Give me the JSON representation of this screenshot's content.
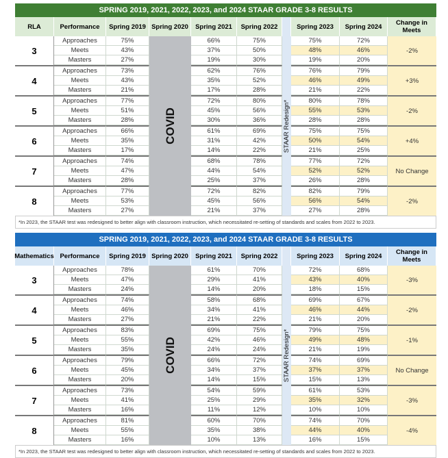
{
  "tables": [
    {
      "title": "SPRING 2019, 2021, 2022, 2023, and 2024 STAAR GRADE 3-8 RESULTS",
      "title_color": "#3f7f34",
      "header_bg": "#dcebd6",
      "subject": "RLA",
      "headers": [
        "Performance",
        "Spring 2019",
        "Spring 2020",
        "Spring 2021",
        "Spring 2022",
        "Spring 2023",
        "Spring 2024",
        "Change in Meets"
      ],
      "covid_label": "COVID",
      "redesign_label": "STAAR Redesign*",
      "levels": [
        "Approaches",
        "Meets",
        "Masters"
      ],
      "grades": [
        {
          "grade": "3",
          "rows": [
            [
              "75%",
              "66%",
              "75%",
              "75%",
              "72%"
            ],
            [
              "43%",
              "37%",
              "50%",
              "48%",
              "46%"
            ],
            [
              "27%",
              "19%",
              "30%",
              "19%",
              "20%"
            ]
          ],
          "change": "-2%"
        },
        {
          "grade": "4",
          "rows": [
            [
              "73%",
              "62%",
              "76%",
              "76%",
              "79%"
            ],
            [
              "43%",
              "35%",
              "52%",
              "46%",
              "49%"
            ],
            [
              "21%",
              "17%",
              "28%",
              "21%",
              "22%"
            ]
          ],
          "change": "+3%"
        },
        {
          "grade": "5",
          "rows": [
            [
              "77%",
              "72%",
              "80%",
              "80%",
              "78%"
            ],
            [
              "51%",
              "45%",
              "56%",
              "55%",
              "53%"
            ],
            [
              "28%",
              "30%",
              "36%",
              "28%",
              "28%"
            ]
          ],
          "change": "-2%"
        },
        {
          "grade": "6",
          "rows": [
            [
              "66%",
              "61%",
              "69%",
              "75%",
              "75%"
            ],
            [
              "35%",
              "31%",
              "42%",
              "50%",
              "54%"
            ],
            [
              "17%",
              "14%",
              "22%",
              "21%",
              "25%"
            ]
          ],
          "change": "+4%"
        },
        {
          "grade": "7",
          "rows": [
            [
              "74%",
              "68%",
              "78%",
              "77%",
              "72%"
            ],
            [
              "47%",
              "44%",
              "54%",
              "52%",
              "52%"
            ],
            [
              "28%",
              "25%",
              "37%",
              "26%",
              "28%"
            ]
          ],
          "change": "No Change"
        },
        {
          "grade": "8",
          "rows": [
            [
              "77%",
              "72%",
              "82%",
              "82%",
              "79%"
            ],
            [
              "53%",
              "45%",
              "56%",
              "56%",
              "54%"
            ],
            [
              "27%",
              "21%",
              "37%",
              "27%",
              "28%"
            ]
          ],
          "change": "-2%"
        }
      ],
      "footnote": "*In 2023, the STAAR test was redesigned to better align with classroom instruction, which necessitated re-setting of standards and scales from 2022 to 2023."
    },
    {
      "title": "SPRING 2019, 2021, 2022, 2023, and 2024 STAAR GRADE 3-8 RESULTS",
      "title_color": "#1f6fbf",
      "header_bg": "#d6e6f5",
      "subject": "Mathematics",
      "headers": [
        "Performance",
        "Spring 2019",
        "Spring 2020",
        "Spring 2021",
        "Spring 2022",
        "Spring 2023",
        "Spring 2024",
        "Change in Meets"
      ],
      "covid_label": "COVID",
      "redesign_label": "STAAR Redesign*",
      "levels": [
        "Approaches",
        "Meets",
        "Masters"
      ],
      "grades": [
        {
          "grade": "3",
          "rows": [
            [
              "78%",
              "61%",
              "70%",
              "72%",
              "68%"
            ],
            [
              "47%",
              "29%",
              "41%",
              "43%",
              "40%"
            ],
            [
              "24%",
              "14%",
              "20%",
              "18%",
              "15%"
            ]
          ],
          "change": "-3%"
        },
        {
          "grade": "4",
          "rows": [
            [
              "74%",
              "58%",
              "68%",
              "69%",
              "67%"
            ],
            [
              "46%",
              "34%",
              "41%",
              "46%",
              "44%"
            ],
            [
              "27%",
              "21%",
              "22%",
              "21%",
              "20%"
            ]
          ],
          "change": "-2%"
        },
        {
          "grade": "5",
          "rows": [
            [
              "83%",
              "69%",
              "75%",
              "79%",
              "75%"
            ],
            [
              "55%",
              "42%",
              "46%",
              "49%",
              "48%"
            ],
            [
              "35%",
              "24%",
              "24%",
              "21%",
              "19%"
            ]
          ],
          "change": "-1%"
        },
        {
          "grade": "6",
          "rows": [
            [
              "79%",
              "66%",
              "72%",
              "74%",
              "69%"
            ],
            [
              "45%",
              "34%",
              "37%",
              "37%",
              "37%"
            ],
            [
              "20%",
              "14%",
              "15%",
              "15%",
              "13%"
            ]
          ],
          "change": "No Change"
        },
        {
          "grade": "7",
          "rows": [
            [
              "73%",
              "54%",
              "59%",
              "61%",
              "53%"
            ],
            [
              "41%",
              "25%",
              "29%",
              "35%",
              "32%"
            ],
            [
              "16%",
              "11%",
              "12%",
              "10%",
              "10%"
            ]
          ],
          "change": "-3%"
        },
        {
          "grade": "8",
          "rows": [
            [
              "81%",
              "60%",
              "70%",
              "74%",
              "70%"
            ],
            [
              "55%",
              "35%",
              "38%",
              "44%",
              "40%"
            ],
            [
              "16%",
              "10%",
              "13%",
              "16%",
              "15%"
            ]
          ],
          "change": "-4%"
        }
      ],
      "footnote": "*In 2023, the STAAR test was redesigned to better align with classroom instruction, which necessitated re-setting of standards and scales from 2022 to 2023."
    }
  ]
}
